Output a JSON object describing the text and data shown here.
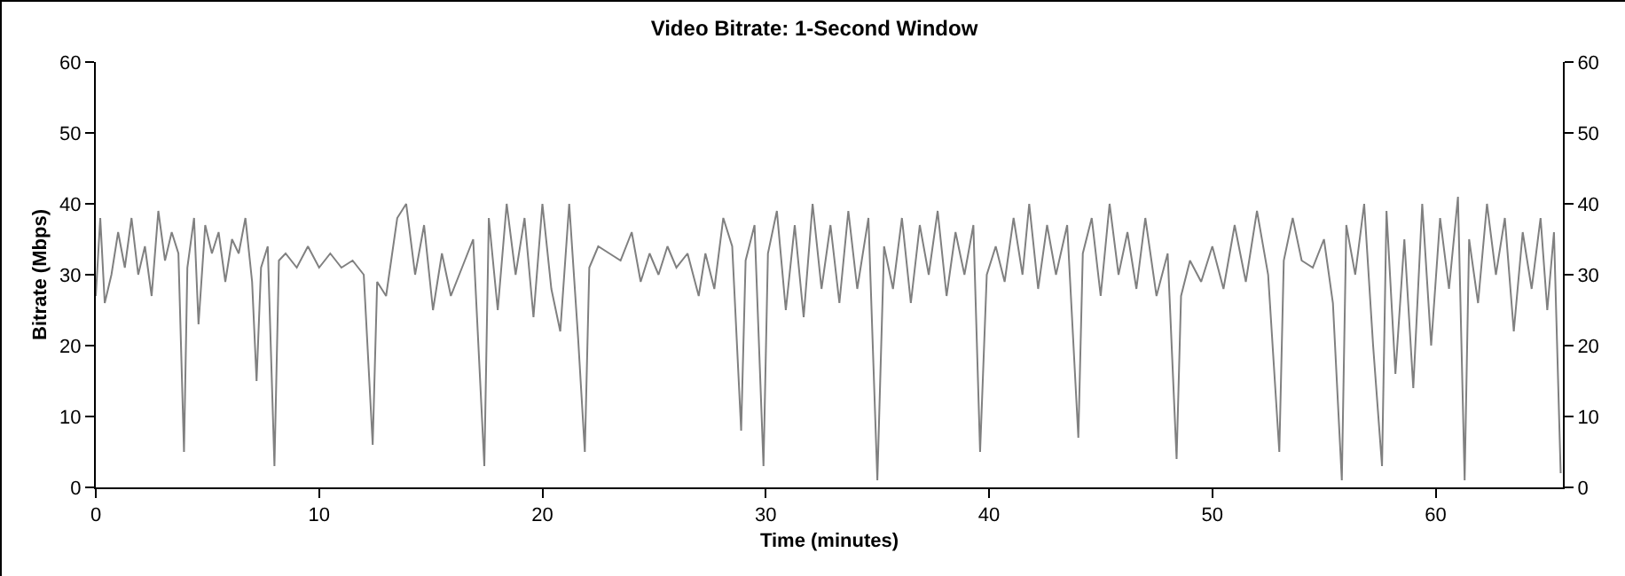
{
  "chart_data": {
    "type": "line",
    "title": "Video Bitrate: 1-Second Window",
    "xlabel": "Time (minutes)",
    "ylabel": "Bitrate (Mbps)",
    "x": [
      0,
      0.2,
      0.4,
      0.7,
      1,
      1.3,
      1.6,
      1.9,
      2.2,
      2.5,
      2.8,
      3.1,
      3.4,
      3.7,
      3.95,
      4.1,
      4.4,
      4.6,
      4.9,
      5.2,
      5.5,
      5.8,
      6.1,
      6.4,
      6.7,
      7.0,
      7.2,
      7.4,
      7.7,
      8.0,
      8.2,
      8.5,
      9,
      9.5,
      10,
      10.5,
      11,
      11.5,
      12,
      12.4,
      12.6,
      13,
      13.5,
      13.9,
      14.3,
      14.7,
      15.1,
      15.5,
      15.9,
      16.4,
      16.9,
      17.4,
      17.6,
      18,
      18.4,
      18.8,
      19.2,
      19.6,
      20,
      20.4,
      20.8,
      21.2,
      21.6,
      21.9,
      22.1,
      22.5,
      23,
      23.5,
      24,
      24.4,
      24.8,
      25.2,
      25.6,
      26,
      26.5,
      27,
      27.3,
      27.7,
      28.1,
      28.5,
      28.9,
      29.1,
      29.5,
      29.9,
      30.1,
      30.5,
      30.9,
      31.3,
      31.7,
      32.1,
      32.5,
      32.9,
      33.3,
      33.7,
      34.1,
      34.6,
      35.0,
      35.3,
      35.7,
      36.1,
      36.5,
      36.9,
      37.3,
      37.7,
      38.1,
      38.5,
      38.9,
      39.3,
      39.6,
      39.9,
      40.3,
      40.7,
      41.1,
      41.5,
      41.8,
      42.2,
      42.6,
      43,
      43.5,
      44,
      44.2,
      44.6,
      45,
      45.4,
      45.8,
      46.2,
      46.6,
      47,
      47.5,
      48,
      48.4,
      48.6,
      49,
      49.5,
      50,
      50.5,
      51,
      51.5,
      52,
      52.5,
      53,
      53.2,
      53.6,
      54,
      54.5,
      55,
      55.4,
      55.8,
      56,
      56.4,
      56.8,
      57.2,
      57.6,
      57.8,
      58.2,
      58.6,
      59,
      59.4,
      59.8,
      60.2,
      60.6,
      61,
      61.3,
      61.5,
      61.9,
      62.3,
      62.7,
      63.1,
      63.5,
      63.9,
      64.3,
      64.7,
      65.0,
      65.3,
      65.6
    ],
    "series": [
      {
        "color": "#808080",
        "values": [
          27,
          38,
          26,
          30,
          36,
          31,
          38,
          30,
          34,
          27,
          39,
          32,
          36,
          33,
          5,
          31,
          38,
          23,
          37,
          33,
          36,
          29,
          35,
          33,
          38,
          29,
          15,
          31,
          34,
          3,
          32,
          33,
          31,
          34,
          31,
          33,
          31,
          32,
          30,
          6,
          29,
          27,
          38,
          40,
          30,
          37,
          25,
          33,
          27,
          31,
          35,
          3,
          38,
          25,
          40,
          30,
          38,
          24,
          40,
          28,
          22,
          40,
          21,
          5,
          31,
          34,
          33,
          32,
          36,
          29,
          33,
          30,
          34,
          31,
          33,
          27,
          33,
          28,
          38,
          34,
          8,
          32,
          37,
          3,
          33,
          39,
          25,
          37,
          24,
          40,
          28,
          37,
          26,
          39,
          28,
          38,
          1,
          34,
          28,
          38,
          26,
          37,
          30,
          39,
          27,
          36,
          30,
          37,
          5,
          30,
          34,
          29,
          38,
          30,
          40,
          28,
          37,
          30,
          37,
          7,
          33,
          38,
          27,
          40,
          30,
          36,
          28,
          38,
          27,
          33,
          4,
          27,
          32,
          29,
          34,
          28,
          37,
          29,
          39,
          30,
          5,
          32,
          38,
          32,
          31,
          35,
          26,
          1,
          37,
          30,
          40,
          20,
          3,
          39,
          16,
          35,
          14,
          40,
          20,
          38,
          28,
          41,
          1,
          35,
          26,
          40,
          30,
          38,
          22,
          36,
          28,
          38,
          25,
          36,
          2
        ]
      }
    ],
    "xlim": [
      0,
      65.7
    ],
    "xticks": [
      0,
      10,
      20,
      30,
      40,
      50,
      60
    ],
    "ylim": [
      0,
      60
    ],
    "yticks": [
      0,
      10,
      20,
      30,
      40,
      50,
      60
    ],
    "y2lim": [
      0,
      60
    ],
    "y2ticks": [
      0,
      10,
      20,
      30,
      40,
      50,
      60
    ],
    "grid": false,
    "marker": "none",
    "line_style": "solid"
  }
}
